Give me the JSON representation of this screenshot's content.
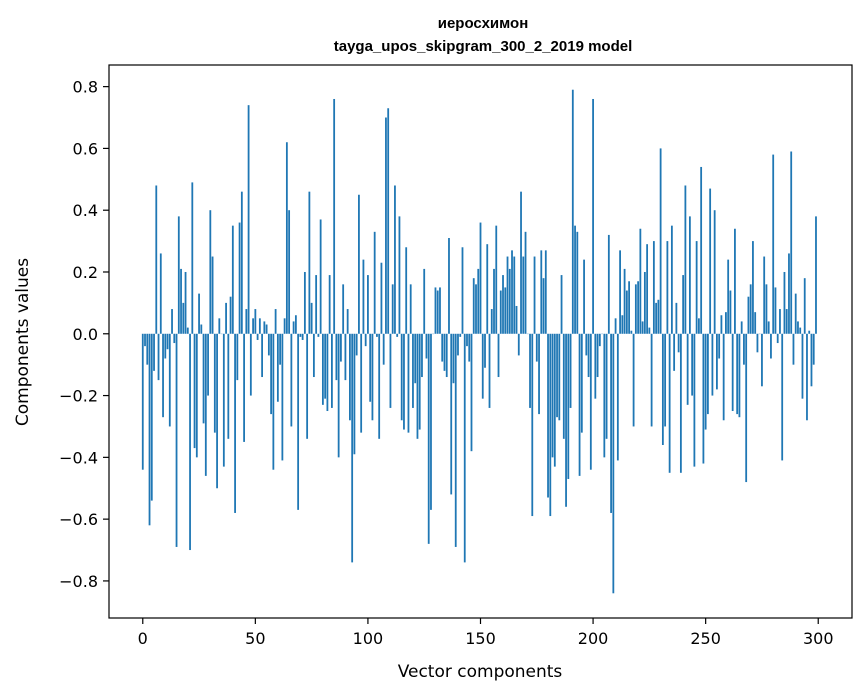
{
  "chart_data": {
    "type": "bar",
    "title_line1": "иеросхимон",
    "title_line2": "tayga_upos_skipgram_300_2_2019 model",
    "xlabel": "Vector components",
    "ylabel": "Components values",
    "xlim": [
      -15,
      315
    ],
    "ylim": [
      -0.92,
      0.87
    ],
    "xticks": [
      0,
      50,
      100,
      150,
      200,
      250,
      300
    ],
    "xtick_labels": [
      "0",
      "50",
      "100",
      "150",
      "200",
      "250",
      "300"
    ],
    "yticks": [
      -0.8,
      -0.6,
      -0.4,
      -0.2,
      0.0,
      0.2,
      0.4,
      0.6,
      0.8
    ],
    "ytick_labels": [
      "−0.8",
      "−0.6",
      "−0.4",
      "−0.2",
      "0.0",
      "0.2",
      "0.4",
      "0.6",
      "0.8"
    ],
    "grid": false,
    "bar_color": "#1f77b4",
    "values": [
      -0.44,
      -0.04,
      -0.1,
      -0.62,
      -0.54,
      -0.12,
      0.48,
      -0.15,
      0.26,
      -0.27,
      -0.08,
      -0.05,
      -0.3,
      0.08,
      -0.03,
      -0.69,
      0.38,
      0.21,
      0.1,
      0.2,
      0.02,
      -0.7,
      0.49,
      -0.37,
      -0.4,
      0.13,
      0.03,
      -0.29,
      -0.46,
      -0.2,
      0.4,
      0.25,
      -0.32,
      -0.5,
      0.05,
      0.0,
      -0.43,
      0.1,
      -0.34,
      0.12,
      0.35,
      -0.58,
      -0.15,
      0.36,
      0.46,
      -0.35,
      0.08,
      0.74,
      -0.2,
      0.05,
      0.08,
      -0.02,
      0.05,
      -0.14,
      0.04,
      0.03,
      -0.07,
      -0.26,
      -0.44,
      0.08,
      -0.22,
      -0.1,
      -0.41,
      0.05,
      0.62,
      0.4,
      -0.3,
      0.04,
      0.06,
      -0.57,
      -0.01,
      -0.02,
      0.2,
      -0.34,
      0.46,
      0.1,
      -0.14,
      0.19,
      -0.01,
      0.37,
      -0.23,
      -0.21,
      -0.25,
      0.19,
      -0.24,
      0.76,
      -0.15,
      -0.4,
      -0.09,
      0.16,
      -0.15,
      0.08,
      -0.28,
      -0.74,
      -0.39,
      -0.07,
      0.45,
      -0.32,
      0.24,
      -0.04,
      0.19,
      -0.22,
      -0.28,
      0.33,
      -0.01,
      -0.34,
      0.23,
      -0.1,
      0.7,
      0.73,
      -0.24,
      0.16,
      0.48,
      -0.01,
      0.38,
      -0.28,
      -0.31,
      0.28,
      -0.32,
      0.16,
      -0.24,
      -0.16,
      -0.34,
      -0.31,
      -0.14,
      0.21,
      -0.08,
      -0.68,
      -0.57,
      0.0,
      0.15,
      0.14,
      0.15,
      -0.09,
      -0.12,
      -0.14,
      0.31,
      -0.52,
      -0.16,
      -0.69,
      -0.07,
      -0.01,
      0.28,
      -0.74,
      -0.04,
      -0.09,
      -0.38,
      0.18,
      0.16,
      0.21,
      0.36,
      -0.21,
      -0.11,
      0.29,
      -0.24,
      0.08,
      0.21,
      0.35,
      -0.14,
      0.14,
      0.19,
      0.15,
      0.25,
      0.21,
      0.27,
      0.25,
      0.09,
      -0.07,
      0.46,
      0.25,
      0.33,
      0.0,
      -0.24,
      -0.59,
      0.25,
      -0.09,
      -0.26,
      0.27,
      0.18,
      0.27,
      -0.53,
      -0.59,
      -0.4,
      -0.43,
      -0.27,
      -0.28,
      0.19,
      -0.34,
      -0.56,
      -0.47,
      -0.24,
      0.79,
      0.35,
      0.33,
      -0.46,
      -0.32,
      0.24,
      -0.07,
      -0.14,
      -0.44,
      0.76,
      -0.21,
      -0.14,
      -0.04,
      0.0,
      -0.4,
      -0.34,
      0.32,
      -0.58,
      -0.84,
      0.05,
      -0.41,
      0.27,
      0.06,
      0.21,
      0.14,
      0.17,
      0.01,
      -0.3,
      0.16,
      0.17,
      0.34,
      0.04,
      0.2,
      0.29,
      0.02,
      -0.3,
      0.3,
      0.1,
      0.11,
      0.6,
      -0.36,
      -0.3,
      0.3,
      -0.45,
      0.35,
      -0.12,
      0.1,
      -0.06,
      -0.45,
      0.19,
      0.48,
      -0.23,
      0.38,
      -0.2,
      -0.43,
      0.3,
      0.05,
      0.54,
      -0.42,
      -0.31,
      -0.26,
      0.47,
      -0.2,
      0.4,
      -0.18,
      -0.08,
      0.06,
      -0.28,
      0.07,
      0.24,
      0.14,
      -0.25,
      0.34,
      -0.26,
      -0.27,
      0.04,
      -0.1,
      -0.48,
      0.12,
      0.16,
      0.3,
      0.07,
      -0.06,
      0.0,
      -0.17,
      0.25,
      0.16,
      0.04,
      -0.08,
      0.58,
      0.15,
      -0.03,
      0.08,
      -0.41,
      0.2,
      0.08,
      0.26,
      0.59,
      -0.1,
      0.13,
      0.04,
      0.02,
      -0.21,
      0.18,
      -0.28,
      0.01,
      -0.17,
      -0.1,
      0.38
    ]
  }
}
